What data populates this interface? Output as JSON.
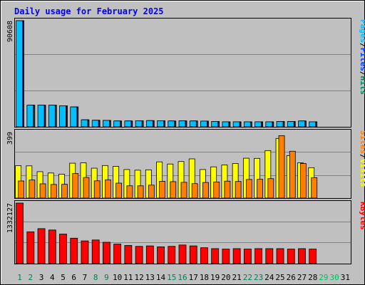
{
  "title": "Daily usage for February 2025",
  "colors": {
    "background": "#c0c0c0",
    "title_text": "#0000ff",
    "plot_bg": "#c0c0c0",
    "grid": "#808080",
    "pages": "#00c0ff",
    "files": "#0040ff",
    "hits": "#00805c",
    "visits": "#ffff00",
    "sites": "#ff8000",
    "kbytes": "#ff0000",
    "weekend_day": "#00805c",
    "weekday": "#000000",
    "future_day": "#00c060"
  },
  "chart_data": [
    {
      "type": "bar",
      "name": "hits-panel",
      "categories": [
        "1",
        "2",
        "3",
        "4",
        "5",
        "6",
        "7",
        "8",
        "9",
        "10",
        "11",
        "12",
        "13",
        "14",
        "15",
        "16",
        "17",
        "18",
        "19",
        "20",
        "21",
        "22",
        "23",
        "24",
        "25",
        "26",
        "27",
        "28"
      ],
      "series": [
        {
          "name": "Hits",
          "color": "#00805c",
          "values": [
            90608,
            18500,
            18500,
            18500,
            18000,
            17000,
            6000,
            5600,
            5500,
            5000,
            5000,
            5200,
            5300,
            5200,
            5000,
            5100,
            5000,
            4900,
            4600,
            4300,
            4300,
            4300,
            4300,
            4300,
            4600,
            4600,
            5000,
            4300
          ]
        },
        {
          "name": "Files",
          "color": "#0040ff",
          "values": [
            90608,
            18500,
            18500,
            18500,
            18000,
            17000,
            6000,
            5600,
            5500,
            5000,
            5000,
            5200,
            5300,
            5200,
            5000,
            5100,
            5000,
            4900,
            4600,
            4300,
            4300,
            4300,
            4300,
            4300,
            4600,
            4600,
            5000,
            4300
          ]
        },
        {
          "name": "Pages",
          "color": "#00c0ff",
          "values": [
            90608,
            18500,
            18500,
            18500,
            18000,
            17000,
            6000,
            5600,
            5500,
            5000,
            5000,
            5200,
            5300,
            5200,
            5000,
            5100,
            5000,
            4900,
            4600,
            4300,
            4300,
            4300,
            4300,
            4300,
            4600,
            4600,
            5000,
            4300
          ]
        }
      ],
      "ymax": 90608,
      "y_tick_label": "90608",
      "legend": [
        "Pages",
        "/",
        "Files",
        "/",
        "Hits"
      ]
    },
    {
      "type": "bar",
      "name": "visits-panel",
      "categories": [
        "1",
        "2",
        "3",
        "4",
        "5",
        "6",
        "7",
        "8",
        "9",
        "10",
        "11",
        "12",
        "13",
        "14",
        "15",
        "16",
        "17",
        "18",
        "19",
        "20",
        "21",
        "22",
        "23",
        "24",
        "25",
        "26",
        "27",
        "28"
      ],
      "series": [
        {
          "name": "Visits",
          "color": "#ffff00",
          "values": [
            195,
            194,
            159,
            151,
            144,
            210,
            212,
            180,
            196,
            191,
            172,
            168,
            170,
            218,
            205,
            220,
            236,
            172,
            188,
            199,
            208,
            240,
            239,
            286,
            359,
            256,
            212,
            183
          ]
        },
        {
          "name": "Sites",
          "color": "#ff8000",
          "values": [
            103,
            109,
            86,
            82,
            83,
            148,
            124,
            104,
            110,
            90,
            74,
            74,
            78,
            101,
            99,
            95,
            87,
            94,
            97,
            102,
            100,
            112,
            113,
            117,
            376,
            282,
            208,
            123
          ]
        }
      ],
      "ymax": 399,
      "y_tick_label": "399",
      "legend": [
        "Sites",
        "/",
        "Visits"
      ]
    },
    {
      "type": "bar",
      "name": "kbytes-panel",
      "categories": [
        "1",
        "2",
        "3",
        "4",
        "5",
        "6",
        "7",
        "8",
        "9",
        "10",
        "11",
        "12",
        "13",
        "14",
        "15",
        "16",
        "17",
        "18",
        "19",
        "20",
        "21",
        "22",
        "23",
        "24",
        "25",
        "26",
        "27",
        "28"
      ],
      "series": [
        {
          "name": "KBytes",
          "color": "#ff0000",
          "values": [
            1332127,
            700000,
            770000,
            740000,
            650000,
            560000,
            500000,
            520000,
            470000,
            430000,
            400000,
            380000,
            390000,
            370000,
            380000,
            410000,
            390000,
            350000,
            330000,
            320000,
            330000,
            320000,
            330000,
            330000,
            330000,
            320000,
            330000,
            320000
          ]
        }
      ],
      "ymax": 1332127,
      "y_tick_label": "1332127",
      "legend": [
        "KBytes"
      ]
    }
  ],
  "x_days": [
    "1",
    "2",
    "3",
    "4",
    "5",
    "6",
    "7",
    "8",
    "9",
    "10",
    "11",
    "12",
    "13",
    "14",
    "15",
    "16",
    "17",
    "18",
    "19",
    "20",
    "21",
    "22",
    "23",
    "24",
    "25",
    "26",
    "27",
    "28",
    "29",
    "30",
    "31"
  ],
  "x_day_kind": [
    "weekend",
    "weekend",
    "weekday",
    "weekday",
    "weekday",
    "weekday",
    "weekday",
    "weekend",
    "weekend",
    "weekday",
    "weekday",
    "weekday",
    "weekday",
    "weekday",
    "weekend",
    "weekend",
    "weekday",
    "weekday",
    "weekday",
    "weekday",
    "weekday",
    "weekend",
    "weekend",
    "weekday",
    "weekday",
    "weekday",
    "weekday",
    "weekday",
    "future",
    "future",
    "weekday"
  ]
}
